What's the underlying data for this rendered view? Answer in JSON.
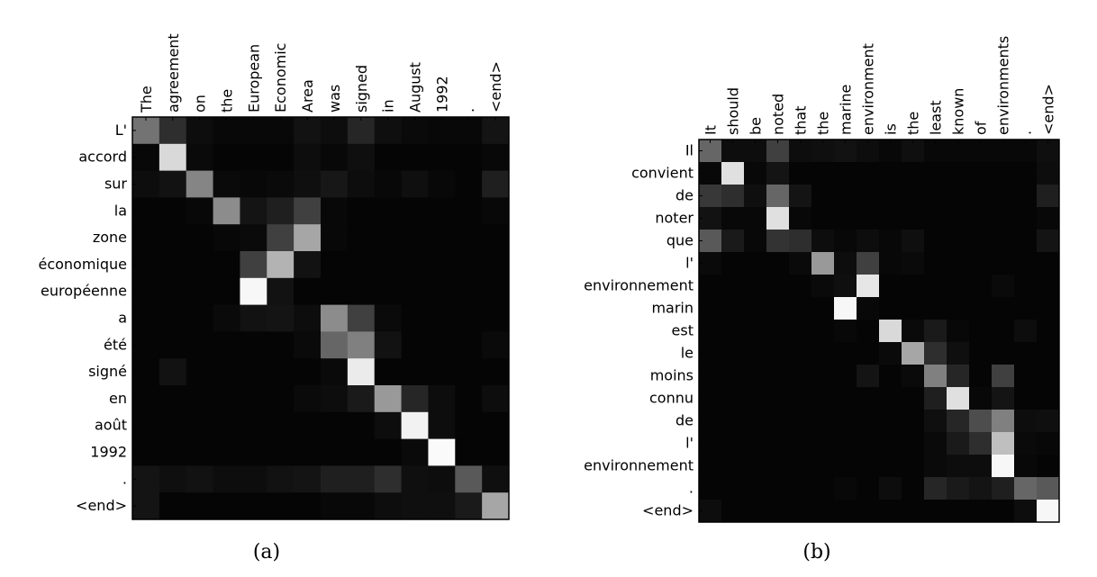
{
  "chart_data": [
    {
      "type": "heatmap",
      "caption": "(a)",
      "x_labels": [
        "The",
        "agreement",
        "on",
        "the",
        "European",
        "Economic",
        "Area",
        "was",
        "signed",
        "in",
        "August",
        "1992",
        ".",
        "<end>"
      ],
      "y_labels": [
        "L'",
        "accord",
        "sur",
        "la",
        "zone",
        "économique",
        "européenne",
        "a",
        "été",
        "signé",
        "en",
        "août",
        "1992",
        ".",
        "<end>"
      ],
      "value_range": [
        0,
        1
      ],
      "colormap": "gray",
      "grid": false,
      "values": [
        [
          0.45,
          0.18,
          0.05,
          0.03,
          0.03,
          0.03,
          0.07,
          0.05,
          0.15,
          0.06,
          0.04,
          0.03,
          0.03,
          0.08
        ],
        [
          0.03,
          0.85,
          0.04,
          0.02,
          0.02,
          0.02,
          0.05,
          0.03,
          0.06,
          0.02,
          0.02,
          0.02,
          0.02,
          0.03
        ],
        [
          0.05,
          0.07,
          0.52,
          0.04,
          0.03,
          0.04,
          0.06,
          0.09,
          0.05,
          0.03,
          0.06,
          0.03,
          0.02,
          0.12
        ],
        [
          0.02,
          0.02,
          0.03,
          0.55,
          0.08,
          0.12,
          0.25,
          0.03,
          0.02,
          0.02,
          0.02,
          0.02,
          0.02,
          0.03
        ],
        [
          0.02,
          0.02,
          0.02,
          0.03,
          0.04,
          0.25,
          0.65,
          0.03,
          0.02,
          0.02,
          0.02,
          0.02,
          0.02,
          0.02
        ],
        [
          0.02,
          0.02,
          0.02,
          0.02,
          0.25,
          0.7,
          0.07,
          0.02,
          0.02,
          0.02,
          0.02,
          0.02,
          0.02,
          0.02
        ],
        [
          0.02,
          0.02,
          0.02,
          0.02,
          0.97,
          0.07,
          0.02,
          0.02,
          0.02,
          0.02,
          0.02,
          0.02,
          0.02,
          0.02
        ],
        [
          0.02,
          0.02,
          0.02,
          0.04,
          0.07,
          0.08,
          0.05,
          0.55,
          0.25,
          0.04,
          0.02,
          0.02,
          0.02,
          0.02
        ],
        [
          0.02,
          0.02,
          0.02,
          0.02,
          0.02,
          0.02,
          0.04,
          0.4,
          0.5,
          0.07,
          0.02,
          0.02,
          0.02,
          0.04
        ],
        [
          0.02,
          0.07,
          0.02,
          0.02,
          0.02,
          0.02,
          0.02,
          0.04,
          0.92,
          0.02,
          0.02,
          0.02,
          0.02,
          0.02
        ],
        [
          0.02,
          0.02,
          0.02,
          0.02,
          0.02,
          0.02,
          0.04,
          0.05,
          0.1,
          0.6,
          0.15,
          0.05,
          0.02,
          0.05
        ],
        [
          0.02,
          0.02,
          0.02,
          0.02,
          0.02,
          0.02,
          0.02,
          0.02,
          0.02,
          0.05,
          0.95,
          0.05,
          0.02,
          0.02
        ],
        [
          0.02,
          0.02,
          0.02,
          0.02,
          0.02,
          0.02,
          0.02,
          0.02,
          0.02,
          0.02,
          0.04,
          0.98,
          0.02,
          0.02
        ],
        [
          0.08,
          0.06,
          0.07,
          0.05,
          0.05,
          0.07,
          0.08,
          0.12,
          0.12,
          0.18,
          0.06,
          0.05,
          0.35,
          0.06
        ],
        [
          0.08,
          0.02,
          0.02,
          0.02,
          0.02,
          0.02,
          0.02,
          0.03,
          0.03,
          0.05,
          0.06,
          0.06,
          0.1,
          0.65
        ]
      ]
    },
    {
      "type": "heatmap",
      "caption": "(b)",
      "x_labels": [
        "It",
        "should",
        "be",
        "noted",
        "that",
        "the",
        "marine",
        "environment",
        "is",
        "the",
        "least",
        "known",
        "of",
        "environments",
        ".",
        "<end>"
      ],
      "y_labels": [
        "Il",
        "convient",
        "de",
        "noter",
        "que",
        "l'",
        "environnement",
        "marin",
        "est",
        "le",
        "moins",
        "connu",
        "de",
        "l'",
        "environnement",
        ".",
        "<end>"
      ],
      "value_range": [
        0,
        1
      ],
      "colormap": "gray",
      "grid": false,
      "values": [
        [
          0.4,
          0.05,
          0.05,
          0.25,
          0.05,
          0.06,
          0.07,
          0.05,
          0.03,
          0.06,
          0.03,
          0.03,
          0.03,
          0.03,
          0.03,
          0.06
        ],
        [
          0.03,
          0.88,
          0.03,
          0.08,
          0.02,
          0.02,
          0.02,
          0.02,
          0.02,
          0.02,
          0.02,
          0.02,
          0.02,
          0.02,
          0.02,
          0.05
        ],
        [
          0.22,
          0.18,
          0.06,
          0.4,
          0.08,
          0.02,
          0.02,
          0.02,
          0.02,
          0.02,
          0.02,
          0.02,
          0.02,
          0.02,
          0.02,
          0.12
        ],
        [
          0.07,
          0.03,
          0.03,
          0.88,
          0.03,
          0.02,
          0.02,
          0.02,
          0.02,
          0.02,
          0.02,
          0.02,
          0.02,
          0.02,
          0.02,
          0.03
        ],
        [
          0.35,
          0.1,
          0.03,
          0.2,
          0.18,
          0.05,
          0.03,
          0.05,
          0.03,
          0.06,
          0.02,
          0.02,
          0.02,
          0.02,
          0.02,
          0.08
        ],
        [
          0.04,
          0.02,
          0.02,
          0.02,
          0.04,
          0.6,
          0.05,
          0.25,
          0.03,
          0.04,
          0.02,
          0.02,
          0.02,
          0.02,
          0.02,
          0.02
        ],
        [
          0.02,
          0.02,
          0.02,
          0.02,
          0.02,
          0.04,
          0.06,
          0.9,
          0.02,
          0.02,
          0.02,
          0.02,
          0.02,
          0.04,
          0.02,
          0.02
        ],
        [
          0.02,
          0.02,
          0.02,
          0.02,
          0.02,
          0.02,
          0.97,
          0.03,
          0.02,
          0.02,
          0.02,
          0.02,
          0.02,
          0.02,
          0.02,
          0.02
        ],
        [
          0.02,
          0.02,
          0.02,
          0.02,
          0.02,
          0.02,
          0.03,
          0.02,
          0.85,
          0.04,
          0.1,
          0.03,
          0.02,
          0.02,
          0.05,
          0.02
        ],
        [
          0.02,
          0.02,
          0.02,
          0.02,
          0.02,
          0.02,
          0.02,
          0.02,
          0.04,
          0.65,
          0.18,
          0.06,
          0.02,
          0.02,
          0.02,
          0.02
        ],
        [
          0.02,
          0.02,
          0.02,
          0.02,
          0.02,
          0.02,
          0.02,
          0.08,
          0.02,
          0.04,
          0.5,
          0.15,
          0.02,
          0.25,
          0.02,
          0.02
        ],
        [
          0.02,
          0.02,
          0.02,
          0.02,
          0.02,
          0.02,
          0.02,
          0.02,
          0.02,
          0.02,
          0.12,
          0.88,
          0.03,
          0.08,
          0.02,
          0.02
        ],
        [
          0.02,
          0.02,
          0.02,
          0.02,
          0.02,
          0.02,
          0.02,
          0.02,
          0.02,
          0.02,
          0.06,
          0.15,
          0.3,
          0.5,
          0.05,
          0.06
        ],
        [
          0.02,
          0.02,
          0.02,
          0.02,
          0.02,
          0.02,
          0.02,
          0.02,
          0.02,
          0.02,
          0.04,
          0.1,
          0.18,
          0.75,
          0.04,
          0.03
        ],
        [
          0.02,
          0.02,
          0.02,
          0.02,
          0.02,
          0.02,
          0.02,
          0.02,
          0.02,
          0.02,
          0.04,
          0.05,
          0.05,
          0.97,
          0.03,
          0.02
        ],
        [
          0.02,
          0.02,
          0.02,
          0.02,
          0.02,
          0.02,
          0.03,
          0.02,
          0.05,
          0.02,
          0.15,
          0.1,
          0.08,
          0.12,
          0.4,
          0.35
        ],
        [
          0.05,
          0.02,
          0.02,
          0.02,
          0.02,
          0.02,
          0.02,
          0.02,
          0.02,
          0.02,
          0.02,
          0.02,
          0.02,
          0.02,
          0.05,
          0.97
        ]
      ]
    }
  ]
}
